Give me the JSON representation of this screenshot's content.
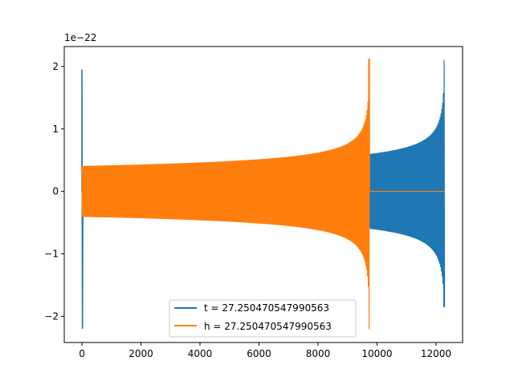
{
  "chart_data": {
    "type": "line",
    "title": "",
    "xlabel": "",
    "ylabel": "",
    "y_offset_label": "1e−22",
    "xlim": [
      -600,
      12900
    ],
    "ylim": [
      -2.42,
      2.32
    ],
    "x_ticks": [
      {
        "value": 0,
        "label": "0"
      },
      {
        "value": 2000,
        "label": "2000"
      },
      {
        "value": 4000,
        "label": "4000"
      },
      {
        "value": 6000,
        "label": "6000"
      },
      {
        "value": 8000,
        "label": "8000"
      },
      {
        "value": 10000,
        "label": "10000"
      },
      {
        "value": 12000,
        "label": "12000"
      }
    ],
    "y_ticks": [
      {
        "value": -2,
        "label": "−2"
      },
      {
        "value": -1,
        "label": "−1"
      },
      {
        "value": 0,
        "label": "0"
      },
      {
        "value": 1,
        "label": "1"
      },
      {
        "value": 2,
        "label": "2"
      }
    ],
    "grid": false,
    "legend_position": "lower center",
    "series": [
      {
        "name": "t = 27.250470547990563",
        "color": "#1f77b4",
        "chirp": {
          "x_start": 0,
          "x_merger": 12300,
          "baseline_amplitude": 0.4,
          "peak_amplitude": 2.1,
          "trough_amplitude": -1.85,
          "start_spike": {
            "x": 0,
            "max": 1.95,
            "min": -2.2
          }
        }
      },
      {
        "name": "h = 27.250470547990563",
        "color": "#ff7f0e",
        "chirp": {
          "x_start": 0,
          "x_merger": 9750,
          "baseline_amplitude": 0.4,
          "peak_amplitude": 2.12,
          "trough_amplitude": -2.2,
          "flat_to": 12300
        }
      }
    ]
  }
}
